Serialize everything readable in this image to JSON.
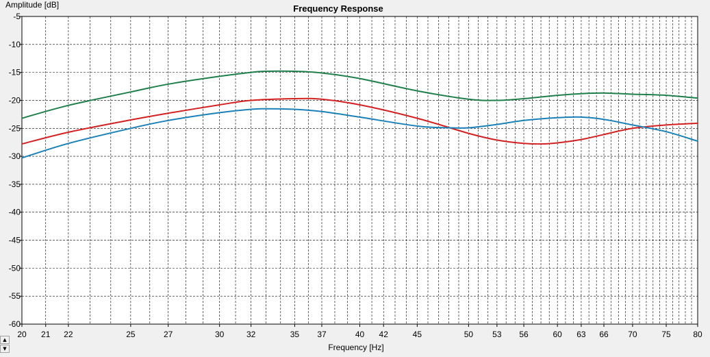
{
  "chart_data": {
    "type": "line",
    "title": "Frequency Response",
    "xlabel": "Frequency [Hz]",
    "ylabel": "Amplitude [dB]",
    "x_scale": "log",
    "xlim": [
      20,
      80
    ],
    "ylim": [
      -60,
      -5
    ],
    "x_ticks": [
      20,
      21,
      22,
      25,
      27,
      30,
      32,
      35,
      37,
      40,
      42,
      45,
      50,
      53,
      56,
      60,
      63,
      66,
      70,
      75,
      80
    ],
    "y_ticks": [
      -5,
      -10,
      -15,
      -20,
      -25,
      -30,
      -35,
      -40,
      -45,
      -50,
      -55,
      -60
    ],
    "grid": true,
    "legend": "none",
    "series": [
      {
        "color": "#1e7f4a",
        "x": [
          20,
          22,
          25,
          27,
          30,
          32,
          33,
          35,
          37,
          40,
          45,
          50,
          53,
          56,
          60,
          63,
          66,
          70,
          75,
          80
        ],
        "y": [
          -23.2,
          -20.9,
          -18.5,
          -17.1,
          -15.7,
          -15.0,
          -14.8,
          -14.8,
          -15.1,
          -16.1,
          -18.3,
          -19.8,
          -20.0,
          -19.7,
          -19.1,
          -18.8,
          -18.7,
          -18.9,
          -19.1,
          -19.6
        ]
      },
      {
        "color": "#d42020",
        "x": [
          20,
          22,
          25,
          27,
          30,
          32,
          35,
          37,
          40,
          45,
          50,
          53,
          56,
          58,
          60,
          63,
          66,
          70,
          75,
          80
        ],
        "y": [
          -27.8,
          -25.7,
          -23.5,
          -22.3,
          -20.8,
          -20.0,
          -19.7,
          -19.8,
          -20.8,
          -23.2,
          -25.9,
          -27.1,
          -27.7,
          -27.8,
          -27.6,
          -27.0,
          -26.1,
          -25.0,
          -24.4,
          -24.1
        ]
      },
      {
        "color": "#1a80b8",
        "x": [
          20,
          22,
          25,
          27,
          30,
          32,
          33,
          35,
          37,
          40,
          45,
          48,
          50,
          53,
          56,
          60,
          63,
          66,
          70,
          75,
          80
        ],
        "y": [
          -30.3,
          -27.7,
          -25.0,
          -23.6,
          -22.2,
          -21.6,
          -21.5,
          -21.6,
          -22.0,
          -23.0,
          -24.6,
          -24.9,
          -24.9,
          -24.3,
          -23.6,
          -23.1,
          -23.0,
          -23.4,
          -24.4,
          -25.6,
          -27.3
        ]
      }
    ]
  },
  "scroll": {
    "up_glyph": "▲",
    "down_glyph": "▼"
  }
}
